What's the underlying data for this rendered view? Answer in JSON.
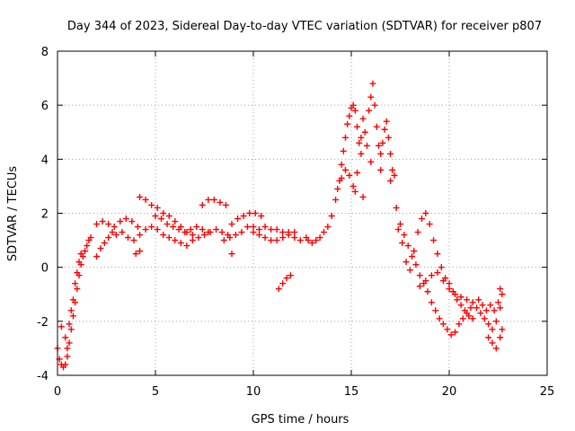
{
  "chart_data": {
    "type": "scatter",
    "title": "Day 344 of 2023, Sidereal Day-to-day VTEC variation (SDTVAR) for receiver p807",
    "xlabel": "GPS time / hours",
    "ylabel": "SDTVAR / TECUs",
    "xlim": [
      0,
      25
    ],
    "ylim": [
      -4,
      8
    ],
    "xticks": [
      0,
      5,
      10,
      15,
      20,
      25
    ],
    "yticks": [
      -4,
      -2,
      0,
      2,
      4,
      6,
      8
    ],
    "grid": true,
    "marker": "+",
    "color": "#ff0000",
    "series": [
      {
        "name": "SDTVAR",
        "points": [
          [
            0.0,
            -3.0
          ],
          [
            0.1,
            -3.4
          ],
          [
            0.2,
            -3.6
          ],
          [
            0.3,
            -3.7
          ],
          [
            0.4,
            -3.6
          ],
          [
            0.5,
            -3.3
          ],
          [
            0.6,
            -2.8
          ],
          [
            0.7,
            -2.3
          ],
          [
            0.8,
            -1.8
          ],
          [
            0.9,
            -1.3
          ],
          [
            1.0,
            -0.8
          ],
          [
            1.1,
            -0.3
          ],
          [
            1.2,
            0.1
          ],
          [
            1.3,
            0.4
          ],
          [
            1.4,
            0.6
          ],
          [
            1.5,
            0.8
          ],
          [
            1.6,
            1.0
          ],
          [
            1.7,
            1.1
          ],
          [
            0.2,
            -2.2
          ],
          [
            0.4,
            -2.6
          ],
          [
            0.6,
            -2.1
          ],
          [
            0.8,
            -1.2
          ],
          [
            1.0,
            -0.2
          ],
          [
            1.2,
            0.5
          ],
          [
            0.5,
            -3.0
          ],
          [
            0.7,
            -1.6
          ],
          [
            0.9,
            -0.6
          ],
          [
            1.1,
            0.2
          ],
          [
            2.0,
            0.4
          ],
          [
            2.2,
            0.7
          ],
          [
            2.4,
            0.9
          ],
          [
            2.6,
            1.1
          ],
          [
            2.8,
            1.3
          ],
          [
            2.0,
            1.6
          ],
          [
            2.3,
            1.7
          ],
          [
            2.6,
            1.6
          ],
          [
            2.9,
            1.5
          ],
          [
            3.2,
            1.7
          ],
          [
            3.5,
            1.8
          ],
          [
            3.8,
            1.7
          ],
          [
            4.1,
            1.5
          ],
          [
            3.0,
            1.2
          ],
          [
            3.3,
            1.3
          ],
          [
            3.6,
            1.1
          ],
          [
            3.9,
            1.0
          ],
          [
            4.2,
            1.2
          ],
          [
            4.0,
            0.5
          ],
          [
            4.2,
            0.6
          ],
          [
            4.2,
            2.6
          ],
          [
            4.5,
            2.5
          ],
          [
            4.8,
            2.3
          ],
          [
            5.1,
            2.2
          ],
          [
            5.4,
            2.0
          ],
          [
            5.7,
            1.9
          ],
          [
            6.0,
            1.7
          ],
          [
            6.3,
            1.5
          ],
          [
            6.6,
            1.3
          ],
          [
            6.9,
            1.2
          ],
          [
            4.5,
            1.4
          ],
          [
            4.8,
            1.5
          ],
          [
            5.1,
            1.4
          ],
          [
            5.4,
            1.2
          ],
          [
            5.7,
            1.1
          ],
          [
            6.0,
            1.0
          ],
          [
            6.3,
            0.9
          ],
          [
            6.6,
            0.8
          ],
          [
            6.9,
            1.0
          ],
          [
            7.2,
            1.1
          ],
          [
            5.0,
            1.9
          ],
          [
            5.3,
            1.8
          ],
          [
            5.6,
            1.6
          ],
          [
            5.9,
            1.5
          ],
          [
            6.2,
            1.4
          ],
          [
            6.5,
            1.3
          ],
          [
            6.8,
            1.4
          ],
          [
            7.1,
            1.5
          ],
          [
            7.4,
            1.4
          ],
          [
            7.7,
            1.3
          ],
          [
            7.4,
            2.3
          ],
          [
            7.7,
            2.5
          ],
          [
            8.0,
            2.5
          ],
          [
            8.3,
            2.4
          ],
          [
            8.6,
            2.3
          ],
          [
            7.5,
            1.2
          ],
          [
            7.8,
            1.3
          ],
          [
            8.1,
            1.4
          ],
          [
            8.4,
            1.3
          ],
          [
            8.7,
            1.2
          ],
          [
            8.9,
            1.6
          ],
          [
            9.2,
            1.8
          ],
          [
            9.5,
            1.9
          ],
          [
            9.8,
            2.0
          ],
          [
            10.1,
            2.0
          ],
          [
            10.4,
            1.9
          ],
          [
            8.5,
            1.0
          ],
          [
            8.8,
            1.1
          ],
          [
            9.1,
            1.2
          ],
          [
            9.4,
            1.3
          ],
          [
            8.9,
            0.5
          ],
          [
            9.7,
            1.5
          ],
          [
            10.0,
            1.3
          ],
          [
            10.3,
            1.2
          ],
          [
            10.6,
            1.1
          ],
          [
            10.9,
            1.0
          ],
          [
            11.2,
            1.0
          ],
          [
            11.5,
            1.1
          ],
          [
            11.8,
            1.2
          ],
          [
            12.1,
            1.3
          ],
          [
            10.0,
            1.5
          ],
          [
            10.3,
            1.4
          ],
          [
            10.6,
            1.5
          ],
          [
            10.9,
            1.4
          ],
          [
            11.2,
            1.4
          ],
          [
            11.5,
            1.3
          ],
          [
            11.8,
            1.3
          ],
          [
            12.1,
            1.1
          ],
          [
            12.4,
            1.0
          ],
          [
            12.7,
            1.1
          ],
          [
            11.3,
            -0.8
          ],
          [
            11.5,
            -0.6
          ],
          [
            11.7,
            -0.4
          ],
          [
            11.9,
            -0.3
          ],
          [
            12.8,
            1.0
          ],
          [
            13.0,
            0.9
          ],
          [
            13.2,
            1.0
          ],
          [
            13.4,
            1.1
          ],
          [
            13.6,
            1.3
          ],
          [
            13.8,
            1.5
          ],
          [
            14.0,
            1.9
          ],
          [
            14.2,
            2.5
          ],
          [
            14.4,
            3.2
          ],
          [
            14.5,
            3.8
          ],
          [
            14.6,
            4.3
          ],
          [
            14.7,
            4.8
          ],
          [
            14.8,
            5.3
          ],
          [
            14.9,
            5.6
          ],
          [
            15.0,
            5.9
          ],
          [
            15.1,
            6.0
          ],
          [
            15.2,
            5.8
          ],
          [
            15.3,
            5.2
          ],
          [
            15.4,
            4.6
          ],
          [
            15.5,
            4.2
          ],
          [
            14.3,
            2.9
          ],
          [
            14.5,
            3.3
          ],
          [
            14.7,
            3.6
          ],
          [
            14.9,
            3.4
          ],
          [
            15.1,
            3.0
          ],
          [
            15.3,
            3.5
          ],
          [
            15.5,
            4.8
          ],
          [
            15.6,
            5.5
          ],
          [
            15.7,
            5.0
          ],
          [
            15.8,
            4.5
          ],
          [
            15.9,
            5.8
          ],
          [
            16.0,
            6.3
          ],
          [
            16.1,
            6.8
          ],
          [
            16.2,
            6.0
          ],
          [
            16.3,
            5.2
          ],
          [
            16.4,
            4.5
          ],
          [
            16.5,
            4.2
          ],
          [
            16.6,
            4.6
          ],
          [
            16.7,
            5.1
          ],
          [
            16.8,
            5.4
          ],
          [
            16.9,
            4.8
          ],
          [
            17.0,
            4.2
          ],
          [
            17.1,
            3.6
          ],
          [
            17.2,
            3.4
          ],
          [
            15.2,
            2.8
          ],
          [
            15.6,
            2.6
          ],
          [
            16.0,
            3.9
          ],
          [
            16.5,
            3.6
          ],
          [
            17.0,
            3.2
          ],
          [
            17.3,
            2.2
          ],
          [
            17.5,
            1.6
          ],
          [
            17.7,
            1.2
          ],
          [
            17.9,
            0.8
          ],
          [
            18.1,
            0.4
          ],
          [
            18.3,
            0.1
          ],
          [
            18.5,
            -0.3
          ],
          [
            18.7,
            -0.6
          ],
          [
            18.9,
            -0.9
          ],
          [
            19.1,
            -1.3
          ],
          [
            17.4,
            1.4
          ],
          [
            17.6,
            0.9
          ],
          [
            17.8,
            0.2
          ],
          [
            18.0,
            -0.1
          ],
          [
            18.2,
            0.6
          ],
          [
            18.4,
            1.3
          ],
          [
            18.6,
            1.8
          ],
          [
            18.8,
            2.0
          ],
          [
            19.0,
            1.6
          ],
          [
            19.2,
            1.0
          ],
          [
            19.4,
            0.5
          ],
          [
            19.6,
            0.0
          ],
          [
            19.8,
            -0.4
          ],
          [
            20.0,
            -0.6
          ],
          [
            20.2,
            -0.9
          ],
          [
            20.4,
            -1.2
          ],
          [
            20.6,
            -1.4
          ],
          [
            20.8,
            -1.6
          ],
          [
            21.0,
            -1.8
          ],
          [
            21.2,
            -1.9
          ],
          [
            19.3,
            -1.6
          ],
          [
            19.5,
            -1.9
          ],
          [
            19.7,
            -2.1
          ],
          [
            19.9,
            -2.3
          ],
          [
            20.1,
            -2.5
          ],
          [
            20.3,
            -2.4
          ],
          [
            20.5,
            -2.1
          ],
          [
            20.7,
            -1.9
          ],
          [
            20.9,
            -1.7
          ],
          [
            21.1,
            -1.5
          ],
          [
            18.5,
            -0.7
          ],
          [
            18.8,
            -0.5
          ],
          [
            19.1,
            -0.3
          ],
          [
            19.4,
            -0.2
          ],
          [
            19.7,
            -0.5
          ],
          [
            20.0,
            -0.8
          ],
          [
            20.3,
            -1.0
          ],
          [
            20.6,
            -1.1
          ],
          [
            20.9,
            -1.2
          ],
          [
            21.2,
            -1.3
          ],
          [
            21.4,
            -1.5
          ],
          [
            21.6,
            -1.7
          ],
          [
            21.8,
            -1.9
          ],
          [
            22.0,
            -2.1
          ],
          [
            22.2,
            -2.3
          ],
          [
            22.4,
            -2.0
          ],
          [
            22.6,
            -1.5
          ],
          [
            22.7,
            -1.0
          ],
          [
            22.6,
            -0.8
          ],
          [
            22.5,
            -1.3
          ],
          [
            22.0,
            -2.6
          ],
          [
            22.2,
            -2.8
          ],
          [
            22.4,
            -3.0
          ],
          [
            22.6,
            -2.6
          ],
          [
            22.7,
            -2.3
          ],
          [
            21.5,
            -1.2
          ],
          [
            21.7,
            -1.4
          ],
          [
            21.9,
            -1.6
          ],
          [
            22.1,
            -1.4
          ],
          [
            22.3,
            -1.6
          ]
        ]
      }
    ]
  }
}
